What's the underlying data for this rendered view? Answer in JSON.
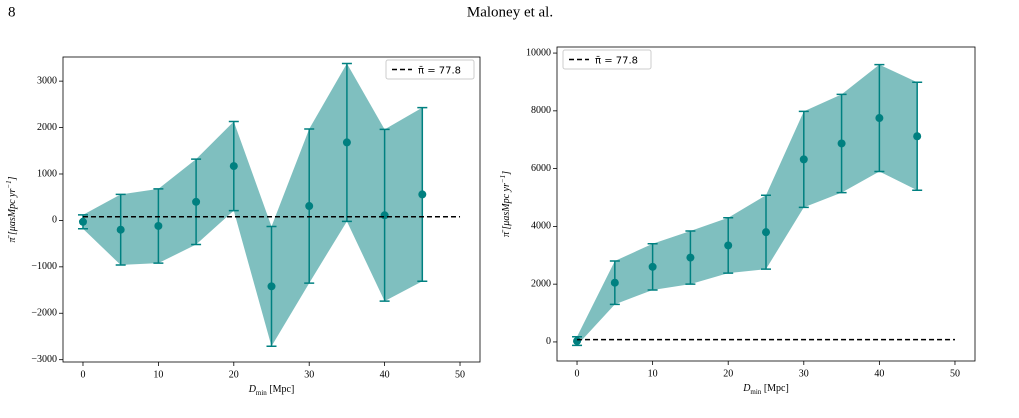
{
  "header": {
    "page_number": "8",
    "authors": "Maloney et al."
  },
  "chart_data": [
    {
      "type": "errorbar",
      "xlabel": {
        "symbol": "D",
        "subscript": "min",
        "unit": "[Mpc]"
      },
      "ylabel": {
        "text": "π̄ [μasMpc yr",
        "superscript": "−1",
        "close": "]"
      },
      "x": [
        0,
        5,
        10,
        15,
        20,
        25,
        30,
        35,
        40,
        45
      ],
      "series": [
        {
          "color": "#008080",
          "values": [
            -30,
            -200,
            -120,
            400,
            1170,
            -1420,
            310,
            1680,
            110,
            560
          ],
          "errors": [
            150,
            760,
            800,
            920,
            960,
            1290,
            1660,
            1700,
            1850,
            1870
          ]
        }
      ],
      "reference_line": {
        "value": 77.8,
        "label": "π̄ = 77.8",
        "color": "#000000",
        "style": "dashed"
      },
      "legend": "upper right",
      "xlim": [
        -2.65,
        52.65
      ],
      "xticks": [
        0,
        10,
        20,
        30,
        40,
        50
      ],
      "ylim": [
        -3050,
        3520
      ],
      "yticks": [
        {
          "value": -3000,
          "label": "−3000"
        },
        {
          "value": -2000,
          "label": "−2000"
        },
        {
          "value": -1000,
          "label": "−1000"
        },
        0,
        1000,
        2000,
        3000
      ]
    },
    {
      "type": "errorbar",
      "xlabel": {
        "symbol": "D",
        "subscript": "min",
        "unit": "[Mpc]"
      },
      "ylabel": {
        "text": "π̄ [μasMpc yr",
        "superscript": "−1",
        "close": "]"
      },
      "x": [
        0,
        5,
        10,
        15,
        20,
        25,
        30,
        35,
        40,
        45
      ],
      "series": [
        {
          "color": "#008080",
          "values": [
            30,
            2050,
            2600,
            2920,
            3340,
            3800,
            6320,
            6870,
            7750,
            7120
          ],
          "errors": [
            150,
            750,
            800,
            920,
            960,
            1280,
            1660,
            1700,
            1850,
            1870
          ]
        }
      ],
      "reference_line": {
        "value": 77.8,
        "label": "π̄ = 77.8",
        "color": "#000000",
        "style": "dashed"
      },
      "legend": "upper left",
      "xlim": [
        -2.65,
        52.65
      ],
      "xticks": [
        0,
        10,
        20,
        30,
        40,
        50
      ],
      "ylim": [
        -660,
        10210
      ],
      "yticks": [
        0,
        2000,
        4000,
        6000,
        8000,
        10000
      ]
    }
  ]
}
